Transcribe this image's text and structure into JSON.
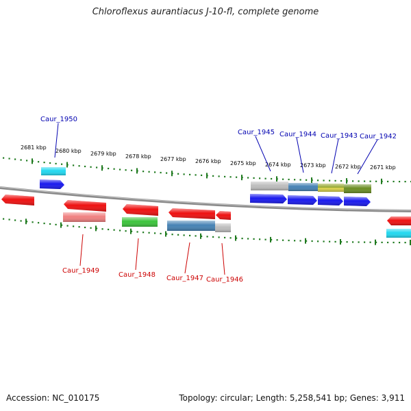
{
  "title": "Chloroflexus aurantiacus J-10-fl, complete genome",
  "footer": {
    "accession": "Accession: NC_010175",
    "topology": "Topology: circular; Length: 5,258,541 bp; Genes: 3,911"
  },
  "ruler_labels": [
    "2681 kbp",
    "2680 kbp",
    "2679 kbp",
    "2678 kbp",
    "2677 kbp",
    "2676 kbp",
    "2675 kbp",
    "2674 kbp",
    "2673 kbp",
    "2672 kbp",
    "2671 kbp"
  ],
  "gene_labels_top": [
    "Caur_1950",
    "Caur_1945",
    "Caur_1944",
    "Caur_1943",
    "Caur_1942"
  ],
  "gene_labels_bottom": [
    "Caur_1949",
    "Caur_1948",
    "Caur_1947",
    "Caur_1946"
  ],
  "colors": {
    "backbone": "#8a8a8a",
    "ruler": "#1f7a1f",
    "label_top": "#0000b0",
    "label_bottom": "#cc0000",
    "red": "#ee1111",
    "blue": "#1a1aee",
    "cyan": "#22d8f0",
    "green": "#3cc43c",
    "steel": "#4682b4",
    "olive": "#6b8e23",
    "gray": "#bdbdbd",
    "salmon": "#f08080",
    "yellow": "#d9d24a"
  }
}
